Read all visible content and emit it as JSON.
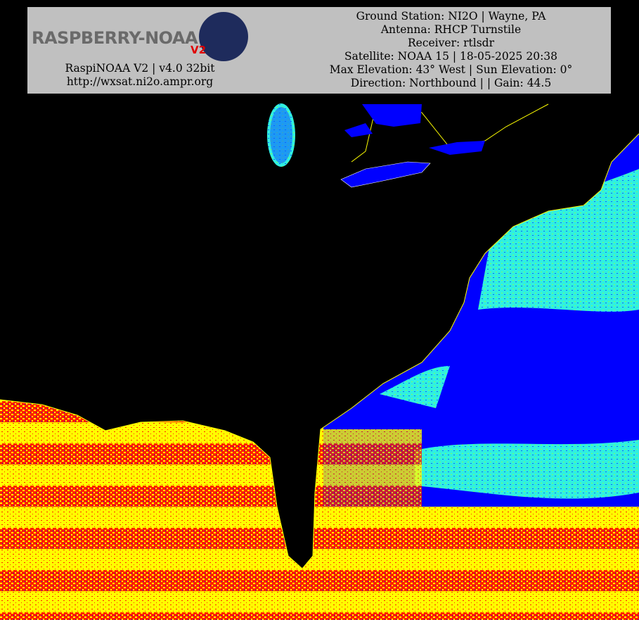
{
  "header": {
    "logo_text": "RASPBERRY-NOAA",
    "logo_badge": "V2",
    "left_lines": [
      "RaspiNOAA V2 | v4.0 32bit",
      "http://wxsat.ni2o.ampr.org"
    ],
    "right_lines": [
      "Ground Station: NI2O | Wayne, PA",
      "Antenna: RHCP Turnstile",
      "Receiver: rtlsdr",
      "Satellite: NOAA 15 | 18-05-2025 20:38",
      "Max Elevation: 43° West | Sun Elevation: 0°",
      "Direction: Northbound | | Gain: 44.5"
    ]
  }
}
